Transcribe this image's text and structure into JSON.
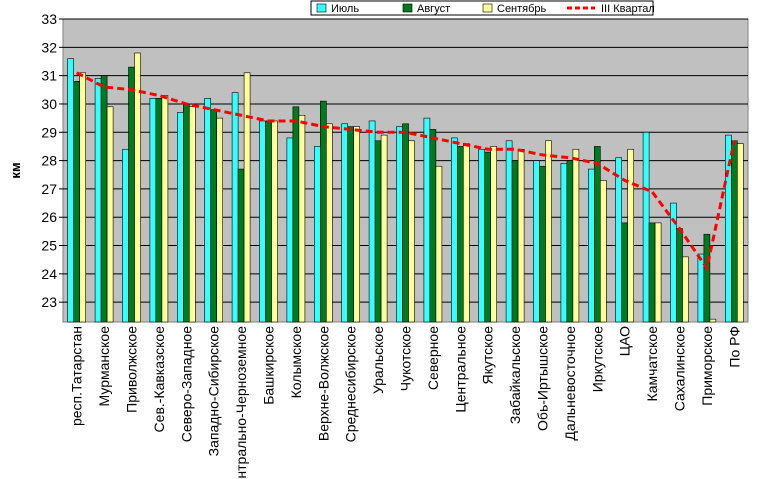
{
  "chart_data": {
    "type": "bar",
    "ylabel": "км",
    "ylim": [
      22.3,
      33
    ],
    "yticks": [
      23,
      24,
      25,
      26,
      27,
      28,
      29,
      30,
      31,
      32,
      33
    ],
    "grid": true,
    "legend_position": "top-right",
    "categories": [
      "респ.Татарстан",
      "Мурманское",
      "Приволжское",
      "Сев.-Кавказское",
      "Северо-Западное",
      "Западно-Сибирское",
      "Центрально-Черноземное",
      "Башкирское",
      "Колымское",
      "Верхне-Волжское",
      "Среднесибирское",
      "Уральское",
      "Чукотское",
      "Северное",
      "Центральное",
      "Якутское",
      "Забайкальское",
      "Обь-Иртышское",
      "Дальневосточное",
      "Иркутское",
      "ЦАО",
      "Камчатское",
      "Сахалинское",
      "Приморское",
      "По РФ"
    ],
    "series": [
      {
        "name": "Июль",
        "kind": "bar",
        "color": "#33ffff",
        "values": [
          31.6,
          30.9,
          28.4,
          30.2,
          29.7,
          30.2,
          30.4,
          29.4,
          28.8,
          28.5,
          29.3,
          29.4,
          29.2,
          29.5,
          28.8,
          28.4,
          28.7,
          28.0,
          27.9,
          27.7,
          28.1,
          29.0,
          26.5,
          24.7,
          28.9
        ]
      },
      {
        "name": "Август",
        "kind": "bar",
        "color": "#007a1f",
        "values": [
          30.8,
          31.0,
          31.3,
          30.2,
          30.0,
          29.8,
          27.7,
          29.4,
          29.9,
          30.1,
          29.2,
          28.7,
          29.3,
          29.1,
          28.5,
          28.3,
          28.0,
          27.8,
          28.0,
          28.5,
          25.8,
          25.8,
          25.6,
          25.4,
          28.7
        ]
      },
      {
        "name": "Сентябрь",
        "kind": "bar",
        "color": "#ffff99",
        "values": [
          31.1,
          29.9,
          31.8,
          30.3,
          29.9,
          29.5,
          31.1,
          29.4,
          29.6,
          29.3,
          29.2,
          28.9,
          28.7,
          27.8,
          28.6,
          28.5,
          28.4,
          28.7,
          28.4,
          27.3,
          28.4,
          25.8,
          24.6,
          22.4,
          28.6
        ]
      },
      {
        "name": "III Квартал",
        "kind": "line",
        "color": "#ff0000",
        "values": [
          31.1,
          30.6,
          30.5,
          30.3,
          30.0,
          29.8,
          29.6,
          29.4,
          29.4,
          29.2,
          29.1,
          29.0,
          29.0,
          28.8,
          28.6,
          28.4,
          28.4,
          28.2,
          28.1,
          27.9,
          27.3,
          26.9,
          25.6,
          24.2,
          28.7
        ]
      }
    ]
  }
}
